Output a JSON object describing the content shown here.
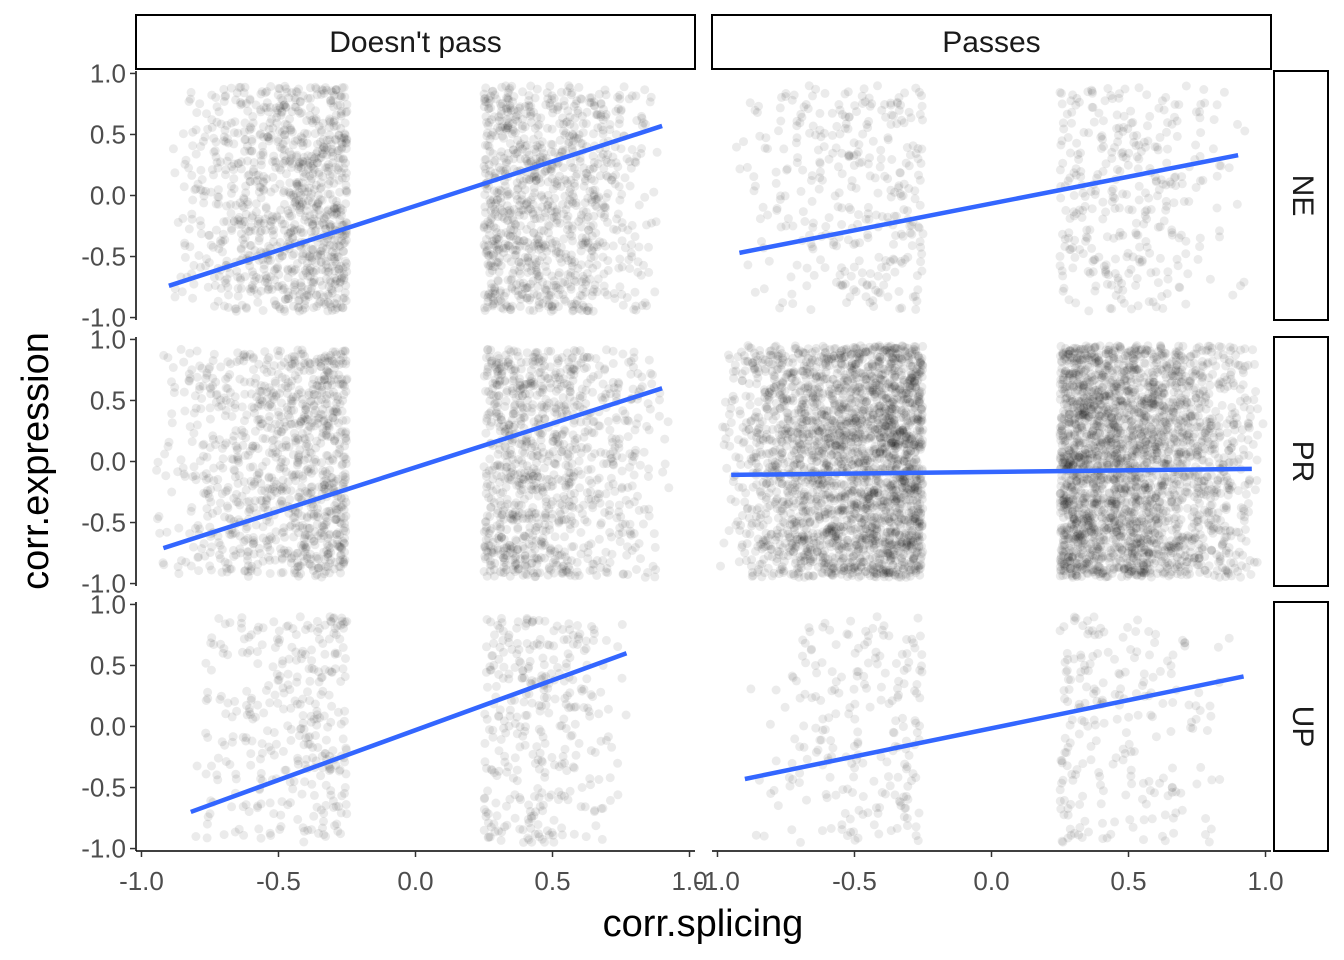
{
  "chart_data": {
    "type": "scatter",
    "title": "",
    "xlabel": "corr.splicing",
    "ylabel": "corr.expression",
    "xlim": [
      -1.02,
      1.02
    ],
    "ylim": [
      -1.02,
      1.02
    ],
    "x_ticks": [
      -1.0,
      -0.5,
      0.0,
      0.5,
      1.0
    ],
    "y_ticks": [
      -1.0,
      -0.5,
      0.0,
      0.5,
      1.0
    ],
    "x_tick_labels": [
      "-1.0",
      "-0.5",
      "0.0",
      "0.5",
      "1.0"
    ],
    "y_tick_labels": [
      "-1.0",
      "-0.5",
      "0.0",
      "0.5",
      "1.0"
    ],
    "grid": false,
    "legend": "none",
    "point_color": "#000000",
    "point_alpha": 0.08,
    "line_color": "#3366FF",
    "facet_columns": [
      "Doesn't pass",
      "Passes"
    ],
    "facet_rows": [
      "NE",
      "PR",
      "UP"
    ],
    "panels": [
      {
        "column": "Doesn't pass",
        "row": "NE",
        "density": "medium",
        "point_clusters": [
          {
            "x_range": [
              -0.9,
              -0.25
            ],
            "y_range": [
              -0.95,
              0.9
            ]
          },
          {
            "x_range": [
              0.25,
              0.9
            ],
            "y_range": [
              -0.95,
              0.9
            ]
          }
        ],
        "fit_line": {
          "x": [
            -0.9,
            0.9
          ],
          "y": [
            -0.74,
            0.57
          ]
        }
      },
      {
        "column": "Passes",
        "row": "NE",
        "density": "low",
        "point_clusters": [
          {
            "x_range": [
              -0.95,
              -0.25
            ],
            "y_range": [
              -0.95,
              0.9
            ]
          },
          {
            "x_range": [
              0.25,
              0.95
            ],
            "y_range": [
              -0.95,
              0.9
            ]
          }
        ],
        "fit_line": {
          "x": [
            -0.92,
            0.9
          ],
          "y": [
            -0.47,
            0.33
          ]
        }
      },
      {
        "column": "Doesn't pass",
        "row": "PR",
        "density": "medium",
        "point_clusters": [
          {
            "x_range": [
              -0.95,
              -0.25
            ],
            "y_range": [
              -0.95,
              0.92
            ]
          },
          {
            "x_range": [
              0.25,
              0.95
            ],
            "y_range": [
              -0.95,
              0.92
            ]
          }
        ],
        "fit_line": {
          "x": [
            -0.92,
            0.9
          ],
          "y": [
            -0.71,
            0.6
          ]
        }
      },
      {
        "column": "Passes",
        "row": "PR",
        "density": "very high",
        "point_clusters": [
          {
            "x_range": [
              -1.0,
              -0.25
            ],
            "y_range": [
              -0.95,
              0.95
            ]
          },
          {
            "x_range": [
              0.25,
              1.0
            ],
            "y_range": [
              -0.95,
              0.95
            ]
          }
        ],
        "fit_line": {
          "x": [
            -0.95,
            0.95
          ],
          "y": [
            -0.11,
            -0.06
          ]
        }
      },
      {
        "column": "Doesn't pass",
        "row": "UP",
        "density": "low",
        "point_clusters": [
          {
            "x_range": [
              -0.85,
              -0.25
            ],
            "y_range": [
              -0.95,
              0.9
            ]
          },
          {
            "x_range": [
              0.25,
              0.8
            ],
            "y_range": [
              -0.95,
              0.9
            ]
          }
        ],
        "fit_line": {
          "x": [
            -0.82,
            0.77
          ],
          "y": [
            -0.7,
            0.6
          ]
        }
      },
      {
        "column": "Passes",
        "row": "UP",
        "density": "very low",
        "point_clusters": [
          {
            "x_range": [
              -0.9,
              -0.25
            ],
            "y_range": [
              -0.95,
              0.9
            ]
          },
          {
            "x_range": [
              0.25,
              0.9
            ],
            "y_range": [
              -0.95,
              0.9
            ]
          }
        ],
        "fit_line": {
          "x": [
            -0.9,
            0.92
          ],
          "y": [
            -0.43,
            0.41
          ]
        }
      }
    ]
  }
}
